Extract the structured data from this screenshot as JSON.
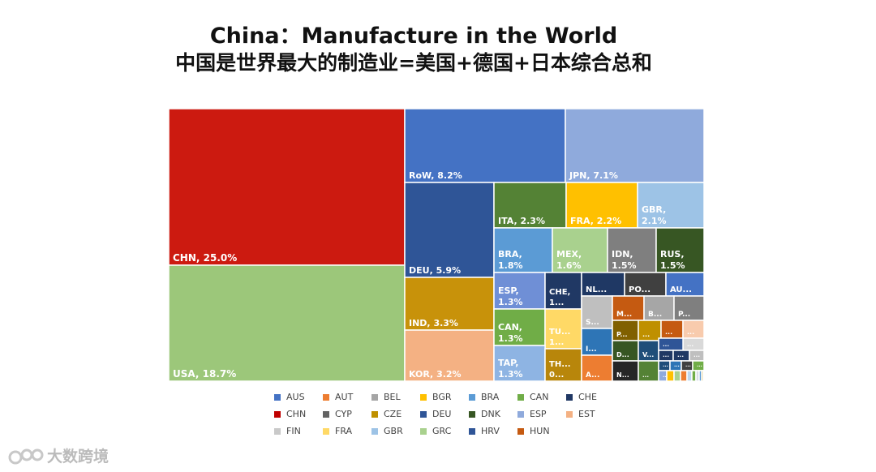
{
  "title": "China：Manufacture in the World",
  "subtitle": "中国是世界最大的制造业=美国+德国+日本综合总和",
  "watermark": "大数跨境",
  "chart_data": {
    "type": "treemap",
    "values_unit": "%",
    "cells": [
      {
        "code": "CHN",
        "label": "CHN, 25.0%",
        "value": 25.0,
        "color": "#cc1a10"
      },
      {
        "code": "USA",
        "label": "USA, 18.7%",
        "value": 18.7,
        "color": "#9cc77a"
      },
      {
        "code": "RoW",
        "label": "RoW, 8.2%",
        "value": 8.2,
        "color": "#4472c4"
      },
      {
        "code": "JPN",
        "label": "JPN, 7.1%",
        "value": 7.1,
        "color": "#8faadc"
      },
      {
        "code": "DEU",
        "label": "DEU, 5.9%",
        "value": 5.9,
        "color": "#2f5597"
      },
      {
        "code": "IND",
        "label": "IND, 3.3%",
        "value": 3.3,
        "color": "#c8920a"
      },
      {
        "code": "KOR",
        "label": "KOR, 3.2%",
        "value": 3.2,
        "color": "#f4b183"
      },
      {
        "code": "ITA",
        "label": "ITA, 2.3%",
        "value": 2.3,
        "color": "#548235"
      },
      {
        "code": "FRA",
        "label": "FRA, 2.2%",
        "value": 2.2,
        "color": "#ffc000"
      },
      {
        "code": "GBR",
        "label": "GBR, 2.1%",
        "value": 2.1,
        "color": "#9dc3e6"
      },
      {
        "code": "BRA",
        "label": "BRA, 1.8%",
        "value": 1.8,
        "color": "#5b9bd5"
      },
      {
        "code": "MEX",
        "label": "MEX, 1.6%",
        "value": 1.6,
        "color": "#a9d18e"
      },
      {
        "code": "IDN",
        "label": "IDN, 1.5%",
        "value": 1.5,
        "color": "#7f7f7f"
      },
      {
        "code": "RUS",
        "label": "RUS, 1.5%",
        "value": 1.5,
        "color": "#375623"
      },
      {
        "code": "ESP",
        "label": "ESP, 1.3%",
        "value": 1.3,
        "color": "#6f8fd6"
      },
      {
        "code": "CHE",
        "label": "CHE, 1...",
        "value": 1.3,
        "color": "#203864"
      },
      {
        "code": "CAN",
        "label": "CAN, 1.3%",
        "value": 1.3,
        "color": "#70ad47"
      },
      {
        "code": "TUR",
        "label": "TU... 1...",
        "value": 1.2,
        "color": "#ffd966"
      },
      {
        "code": "TAP",
        "label": "TAP, 1.3%",
        "value": 1.3,
        "color": "#8eb4e3"
      },
      {
        "code": "THA",
        "label": "TH... 0...",
        "value": 0.9,
        "color": "#b8860b"
      },
      {
        "code": "NLD",
        "label": "NL...",
        "value": 0.9,
        "color": "#1f3864"
      },
      {
        "code": "POL",
        "label": "PO...",
        "value": 0.8,
        "color": "#404040"
      },
      {
        "code": "AUS",
        "label": "AU...",
        "value": 0.7,
        "color": "#4472c4"
      },
      {
        "code": "SWE",
        "label": "S...",
        "value": 0.6,
        "color": "#bfbfbf"
      },
      {
        "code": "MYS",
        "label": "M...",
        "value": 0.5,
        "color": "#c55a11"
      },
      {
        "code": "BEL",
        "label": "B...",
        "value": 0.5,
        "color": "#a6a6a6"
      },
      {
        "code": "PHL",
        "label": "P...",
        "value": 0.5,
        "color": "#7f7f7f"
      },
      {
        "code": "IRL",
        "label": "I...",
        "value": 0.5,
        "color": "#2e75b6"
      },
      {
        "code": "AUT",
        "label": "A...",
        "value": 0.4,
        "color": "#ed7d31"
      },
      {
        "code": "DNK",
        "label": "D...",
        "value": 0.4,
        "color": "#375623"
      },
      {
        "code": "NOR",
        "label": "N...",
        "value": 0.4,
        "color": "#262626"
      },
      {
        "code": "VNM",
        "label": "V...",
        "value": 0.4,
        "color": "#1f4e79"
      },
      {
        "code": "PRT",
        "label": "P...",
        "value": 0.3,
        "color": "#806000"
      },
      {
        "code": "CZE",
        "label": "...",
        "value": 0.4,
        "color": "#bf9000"
      },
      {
        "code": "HUN",
        "label": "...",
        "value": 0.3,
        "color": "#c55a11"
      },
      {
        "code": "SVK",
        "label": "...",
        "value": 0.3,
        "color": "#548235"
      },
      {
        "code": "LUX",
        "label": "...",
        "value": 0.3,
        "color": "#2f5597"
      },
      {
        "code": "EST",
        "label": "...",
        "value": 0.3,
        "color": "#f8cbad"
      },
      {
        "code": "FIN",
        "label": "...",
        "value": 0.3,
        "color": "#d9d9d9"
      },
      {
        "code": "ROU",
        "label": "...",
        "value": 0.3,
        "color": "#203864"
      },
      {
        "code": "GRC",
        "label": "...",
        "value": 0.3,
        "color": "#1f3864"
      },
      {
        "code": "BGR",
        "label": "...",
        "value": 0.2,
        "color": "#bfbfbf"
      },
      {
        "code": "SVN",
        "label": "...",
        "value": 0.2,
        "color": "#1f4e79"
      },
      {
        "code": "HRV",
        "label": "...",
        "value": 0.2,
        "color": "#2e75b6"
      },
      {
        "code": "CYP",
        "label": "...",
        "value": 0.1,
        "color": "#404040"
      },
      {
        "code": "LTU",
        "label": "...",
        "value": 0.1,
        "color": "#70ad47"
      },
      {
        "code": "LVA",
        "label": "...",
        "value": 0.1,
        "color": "#8faadc"
      },
      {
        "code": "MLT",
        "label": "...",
        "value": 0.1,
        "color": "#ffc000"
      },
      {
        "code": "c49",
        "label": "",
        "value": 0.1,
        "color": "#a9d18e"
      },
      {
        "code": "c50",
        "label": "",
        "value": 0.1,
        "color": "#ed7d31"
      },
      {
        "code": "c51",
        "label": "",
        "value": 0.1,
        "color": "#bdd7ee"
      },
      {
        "code": "c52",
        "label": "",
        "value": 0.1,
        "color": "#70ad47"
      },
      {
        "code": "c53",
        "label": "",
        "value": 0.1,
        "color": "#d6dce4"
      },
      {
        "code": "c54",
        "label": "",
        "value": 0.1,
        "color": "#5b9bd5"
      },
      {
        "code": "c55",
        "label": "",
        "value": 0.1,
        "color": "#bf9000"
      },
      {
        "code": "c56",
        "label": "",
        "value": 0.1,
        "color": "#ffd966"
      }
    ],
    "legend": [
      {
        "label": "AUS",
        "color": "#4472c4"
      },
      {
        "label": "AUT",
        "color": "#ed7d31"
      },
      {
        "label": "BEL",
        "color": "#a5a5a5"
      },
      {
        "label": "BGR",
        "color": "#ffc000"
      },
      {
        "label": "BRA",
        "color": "#5b9bd5"
      },
      {
        "label": "CAN",
        "color": "#70ad47"
      },
      {
        "label": "CHE",
        "color": "#203864"
      },
      {
        "label": "CHN",
        "color": "#c00000"
      },
      {
        "label": "CYP",
        "color": "#636363"
      },
      {
        "label": "CZE",
        "color": "#bf9000"
      },
      {
        "label": "DEU",
        "color": "#2f5597"
      },
      {
        "label": "DNK",
        "color": "#375623"
      },
      {
        "label": "ESP",
        "color": "#8faadc"
      },
      {
        "label": "EST",
        "color": "#f4b183"
      },
      {
        "label": "FIN",
        "color": "#c9c9c9"
      },
      {
        "label": "FRA",
        "color": "#ffd966"
      },
      {
        "label": "GBR",
        "color": "#9dc3e6"
      },
      {
        "label": "GRC",
        "color": "#a9d18e"
      },
      {
        "label": "HRV",
        "color": "#2f5597"
      },
      {
        "label": "HUN",
        "color": "#c55a11"
      }
    ]
  }
}
